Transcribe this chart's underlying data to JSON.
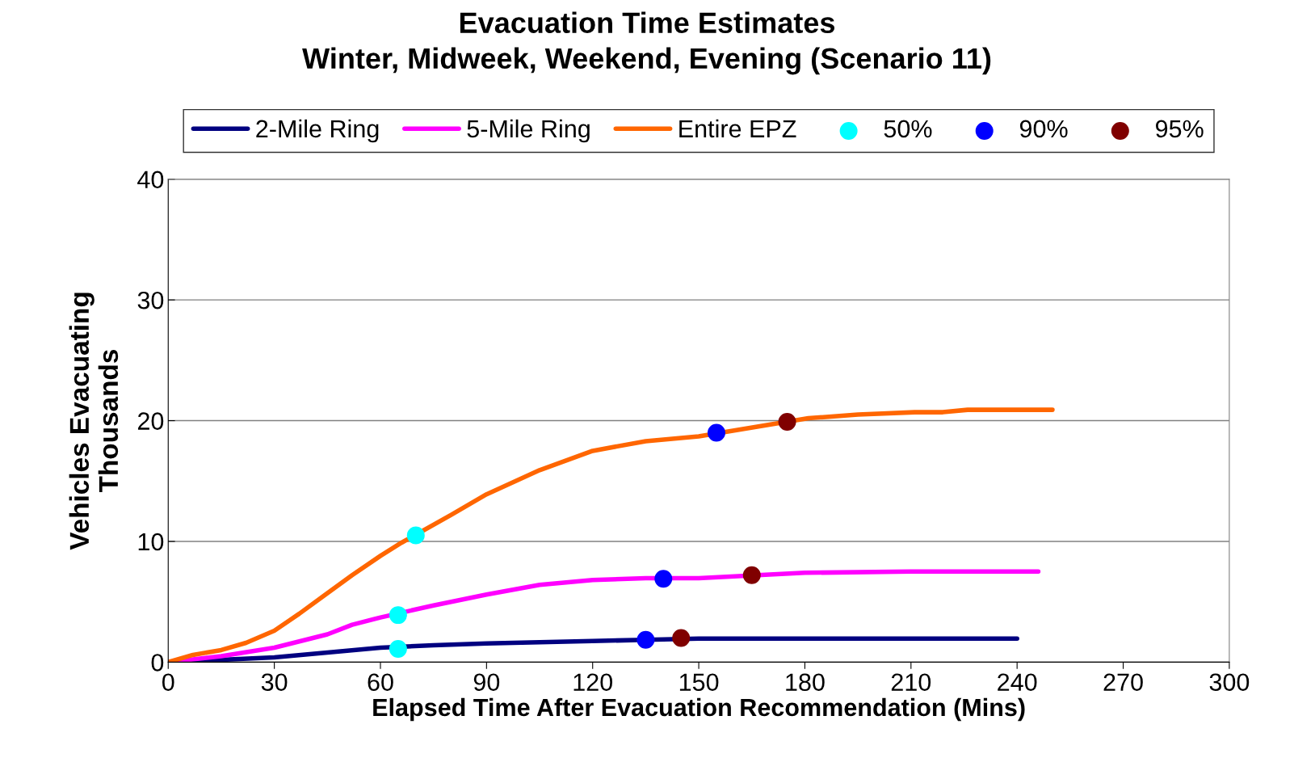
{
  "chart_data": {
    "type": "line",
    "title": "Evacuation Time Estimates\nWinter, Midweek, Weekend, Evening (Scenario 11)",
    "xlabel": "Elapsed Time After Evacuation Recommendation (Mins)",
    "ylabel": "Vehicles Evacuating\nThousands",
    "xlim": [
      0,
      300
    ],
    "xticks": [
      0,
      30,
      60,
      90,
      120,
      150,
      180,
      210,
      240,
      270,
      300
    ],
    "ylim": [
      0,
      40
    ],
    "yticks": [
      0,
      10,
      20,
      30,
      40
    ],
    "grid": "y",
    "legend": "top",
    "marker": "none",
    "line_style": "solid",
    "series": [
      {
        "name": "2-Mile Ring",
        "color": "#000080",
        "x": [
          0,
          15,
          30,
          45,
          60,
          75,
          90,
          105,
          120,
          135,
          150,
          180,
          210,
          240
        ],
        "values": [
          0,
          0.2,
          0.4,
          0.8,
          1.2,
          1.4,
          1.55,
          1.65,
          1.75,
          1.85,
          1.95,
          1.95,
          1.95,
          1.95
        ]
      },
      {
        "name": "5-Mile Ring",
        "color": "#ff00ff",
        "x": [
          0,
          15,
          30,
          45,
          52,
          60,
          75,
          90,
          105,
          120,
          135,
          150,
          180,
          210,
          240,
          246
        ],
        "values": [
          0,
          0.5,
          1.2,
          2.3,
          3.1,
          3.7,
          4.7,
          5.6,
          6.4,
          6.8,
          6.95,
          6.95,
          7.4,
          7.5,
          7.5,
          7.5
        ]
      },
      {
        "name": "Entire EPZ",
        "color": "#ff6600",
        "x": [
          0,
          7,
          15,
          22,
          30,
          37,
          44,
          52,
          60,
          66,
          80,
          90,
          105,
          120,
          135,
          150,
          181,
          195,
          211,
          219,
          226,
          250
        ],
        "values": [
          0,
          0.6,
          1.0,
          1.6,
          2.6,
          4.0,
          5.5,
          7.2,
          8.8,
          9.9,
          12.2,
          13.9,
          15.9,
          17.5,
          18.3,
          18.7,
          20.2,
          20.5,
          20.7,
          20.7,
          20.9,
          20.9
        ]
      },
      {
        "name": "50%",
        "type": "scatter",
        "marker": "circle",
        "color": "#00ffff",
        "x": [
          65,
          65,
          70
        ],
        "values": [
          1.1,
          3.9,
          10.5
        ]
      },
      {
        "name": "90%",
        "type": "scatter",
        "marker": "circle",
        "color": "#0000ff",
        "x": [
          135,
          140,
          155
        ],
        "values": [
          1.85,
          6.9,
          19.0
        ]
      },
      {
        "name": "95%",
        "type": "scatter",
        "marker": "circle",
        "color": "#800000",
        "x": [
          145,
          165,
          175
        ],
        "values": [
          2.0,
          7.2,
          19.9
        ]
      }
    ]
  }
}
